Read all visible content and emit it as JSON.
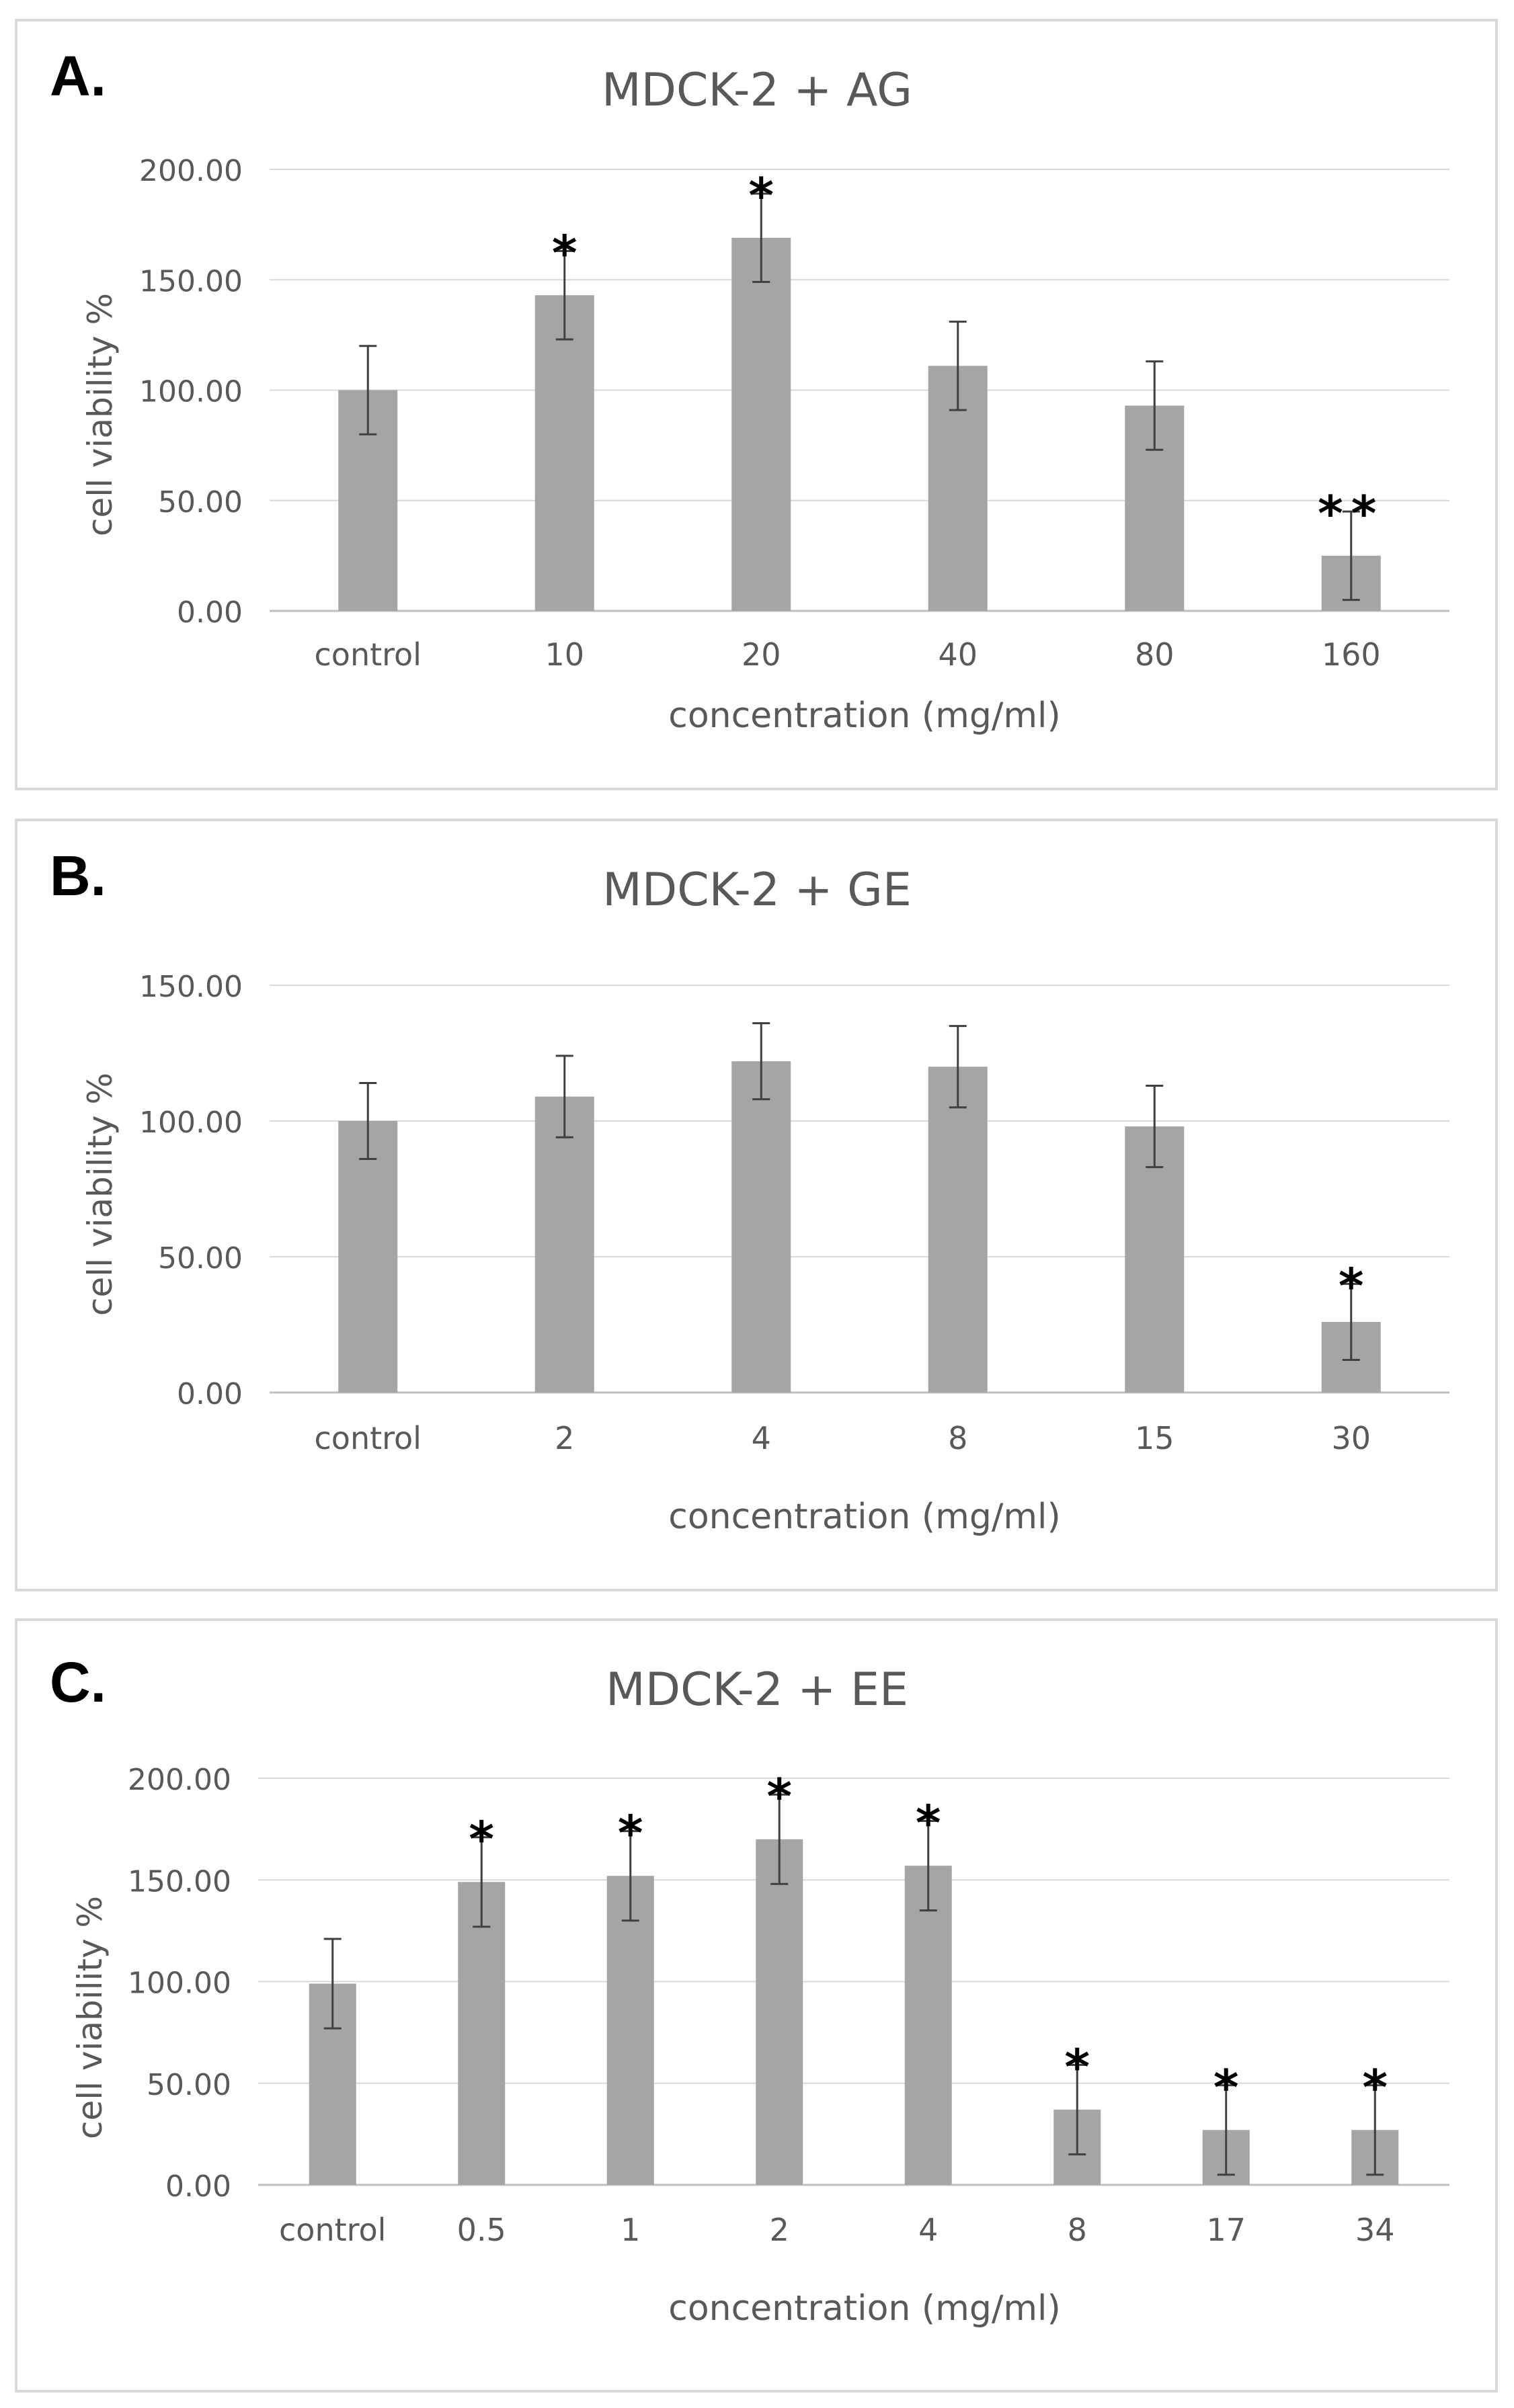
{
  "chart_data": [
    {
      "type": "bar",
      "panel_label": "A.",
      "title": "MDCK-2 + AG",
      "xlabel": "concentration (mg/ml)",
      "ylabel": "cell viability %",
      "categories": [
        "control",
        "10",
        "20",
        "40",
        "80",
        "160"
      ],
      "values": [
        100,
        143,
        169,
        111,
        93,
        25
      ],
      "errors": [
        20,
        20,
        20,
        20,
        20,
        20
      ],
      "significance": [
        "",
        "*",
        "*",
        "",
        "",
        "**"
      ],
      "ylim": [
        0,
        200
      ],
      "yticks": [
        "0.00",
        "50.00",
        "100.00",
        "150.00",
        "200.00"
      ],
      "grid": true,
      "bar_color": "#a5a5a5"
    },
    {
      "type": "bar",
      "panel_label": "B.",
      "title": "MDCK-2 + GE",
      "xlabel": "concentration (mg/ml)",
      "ylabel": "cell viability %",
      "categories": [
        "control",
        "2",
        "4",
        "8",
        "15",
        "30"
      ],
      "values": [
        100,
        109,
        122,
        120,
        98,
        26
      ],
      "errors": [
        14,
        15,
        14,
        15,
        15,
        14
      ],
      "significance": [
        "",
        "",
        "",
        "",
        "",
        "*"
      ],
      "ylim": [
        0,
        150
      ],
      "yticks": [
        "0.00",
        "50.00",
        "100.00",
        "150.00"
      ],
      "grid": true,
      "bar_color": "#a5a5a5"
    },
    {
      "type": "bar",
      "panel_label": "C.",
      "title": "MDCK-2 + EE",
      "xlabel": "concentration (mg/ml)",
      "ylabel": "cell viability %",
      "categories": [
        "control",
        "0.5",
        "1",
        "2",
        "4",
        "8",
        "17",
        "34"
      ],
      "values": [
        99,
        149,
        152,
        170,
        157,
        37,
        27,
        27
      ],
      "errors": [
        22,
        22,
        22,
        22,
        22,
        22,
        22,
        22
      ],
      "significance": [
        "",
        "*",
        "*",
        "*",
        "*",
        "*",
        "*",
        "*"
      ],
      "ylim": [
        0,
        200
      ],
      "yticks": [
        "0.00",
        "50.00",
        "100.00",
        "150.00",
        "200.00"
      ],
      "grid": true,
      "bar_color": "#a5a5a5"
    }
  ]
}
